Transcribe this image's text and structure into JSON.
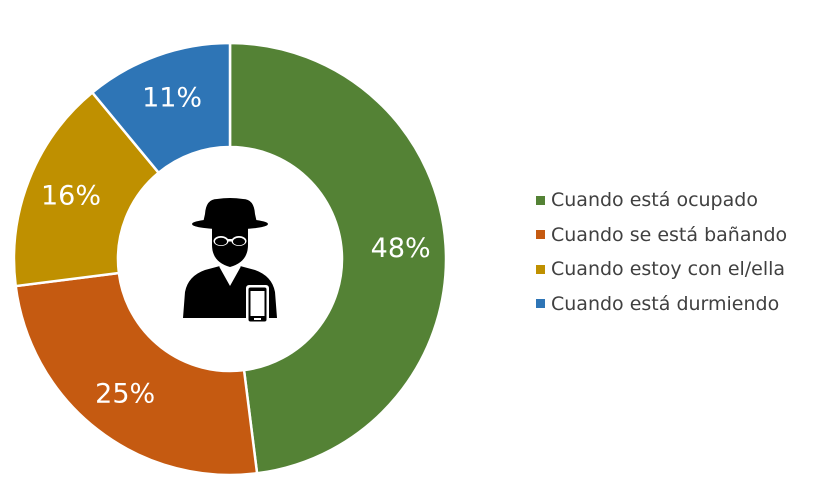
{
  "chart_data": {
    "type": "pie",
    "donut": true,
    "categories": [
      "Cuando está ocupado",
      "Cuando se está bañando",
      "Cuando estoy con el/ella",
      "Cuando está durmiendo"
    ],
    "values": [
      48,
      25,
      16,
      11
    ],
    "value_labels": [
      "48%",
      "25%",
      "16%",
      "11%"
    ],
    "colors": [
      "#548235",
      "#C55A11",
      "#BF9000",
      "#2E75B6"
    ],
    "label_color": "#FFFFFF",
    "legend_position": "right",
    "center_icon": "spy-with-phone-icon"
  }
}
